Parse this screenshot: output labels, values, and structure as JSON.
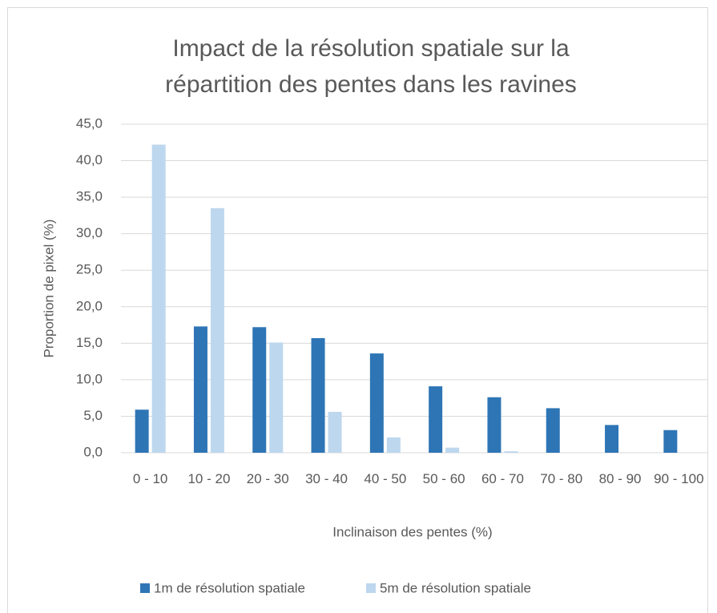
{
  "chart_data": {
    "type": "bar",
    "title": "Impact de la résolution spatiale sur la répartition des pentes dans les ravines",
    "xlabel": "Inclinaison des pentes (%)",
    "ylabel": "Proportion de pixel (%)",
    "categories": [
      "0 - 10",
      "10 - 20",
      "20 - 30",
      "30 - 40",
      "40 - 50",
      "50 - 60",
      "60 - 70",
      "70 - 80",
      "80 - 90",
      "90 - 100"
    ],
    "series": [
      {
        "name": "1m de résolution spatiale",
        "color": "#2e75b6",
        "values": [
          5.9,
          17.3,
          17.2,
          15.7,
          13.6,
          9.1,
          7.6,
          6.1,
          3.8,
          3.1
        ]
      },
      {
        "name": "5m de résolution spatiale",
        "color": "#bdd7ee",
        "values": [
          42.2,
          33.5,
          15.1,
          5.6,
          2.1,
          0.7,
          0.2,
          0,
          0,
          0
        ]
      }
    ],
    "ylim": [
      0,
      45
    ],
    "yticks": [
      {
        "value": 0,
        "label": "0,0"
      },
      {
        "value": 5,
        "label": "5,0"
      },
      {
        "value": 10,
        "label": "10,0"
      },
      {
        "value": 15,
        "label": "15,0"
      },
      {
        "value": 20,
        "label": "20,0"
      },
      {
        "value": 25,
        "label": "25,0"
      },
      {
        "value": 30,
        "label": "30,0"
      },
      {
        "value": 35,
        "label": "35,0"
      },
      {
        "value": 40,
        "label": "40,0"
      },
      {
        "value": 45,
        "label": "45,0"
      }
    ],
    "grid": true,
    "legend": "bottom"
  }
}
